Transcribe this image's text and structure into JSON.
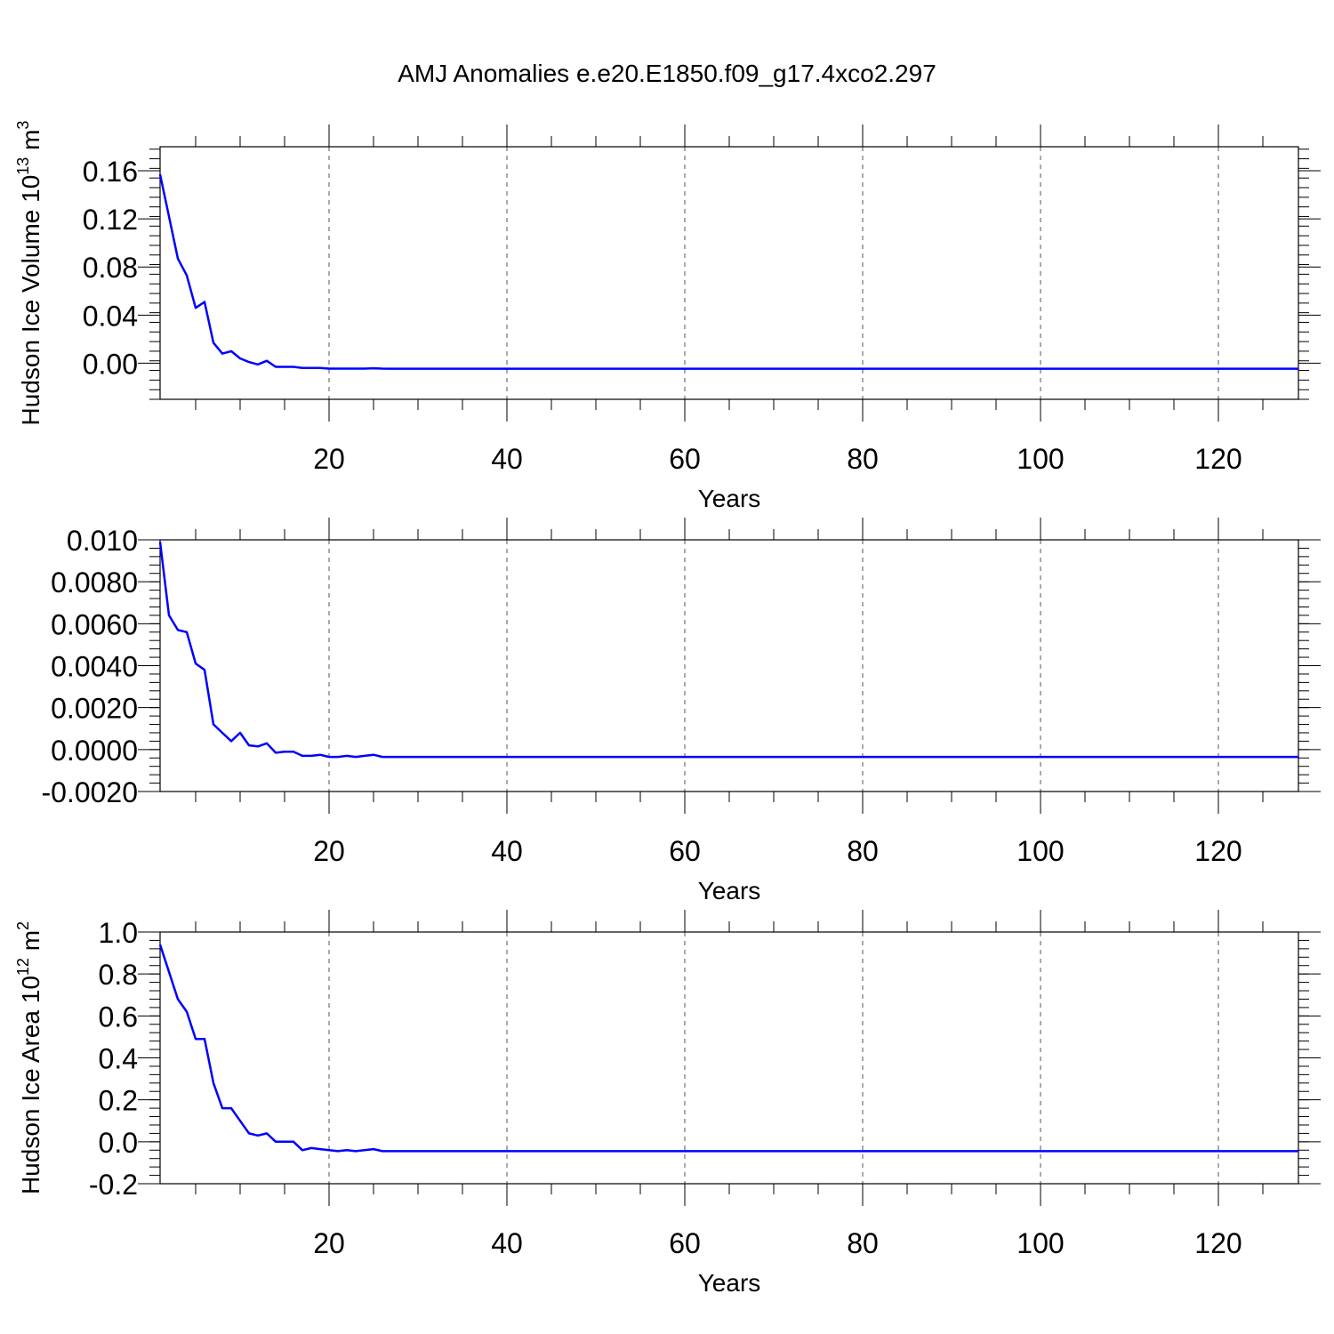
{
  "title": "AMJ Anomalies e.e20.E1850.f09_g17.4xco2.297",
  "chart_data": [
    {
      "type": "line",
      "ylabel_main": "Hudson Ice Volume 10",
      "ylabel_exp": "13",
      "ylabel_unit": " m",
      "ylabel_unit_exp": "3",
      "xlabel": "Years",
      "xlim": [
        1,
        129
      ],
      "ylim": [
        -0.03,
        0.18
      ],
      "yticks": [
        0,
        0.04,
        0.08,
        0.12,
        0.16
      ],
      "ytick_labels": [
        "0.00",
        "0.04",
        "0.08",
        "0.12",
        "0.16"
      ],
      "xticks": [
        20,
        40,
        60,
        80,
        100,
        120
      ],
      "xtick_labels": [
        "20",
        "40",
        "60",
        "80",
        "100",
        "120"
      ],
      "color": "#0000ff",
      "x": [
        1,
        2,
        3,
        4,
        5,
        6,
        7,
        8,
        9,
        10,
        11,
        12,
        13,
        14,
        15,
        16,
        17,
        18,
        19,
        20,
        21,
        22,
        23,
        24,
        25,
        26,
        27,
        30,
        35,
        40,
        50,
        60,
        70,
        80,
        90,
        100,
        110,
        120,
        129
      ],
      "y": [
        0.157,
        0.122,
        0.087,
        0.073,
        0.046,
        0.051,
        0.017,
        0.008,
        0.01,
        0.004,
        0.001,
        -0.001,
        0.002,
        -0.003,
        -0.003,
        -0.003,
        -0.004,
        -0.004,
        -0.004,
        -0.0045,
        -0.0045,
        -0.0045,
        -0.0045,
        -0.0045,
        -0.0042,
        -0.0045,
        -0.0046,
        -0.0046,
        -0.0046,
        -0.0046,
        -0.0046,
        -0.0046,
        -0.0046,
        -0.0046,
        -0.0046,
        -0.0046,
        -0.0046,
        -0.0046,
        -0.0046
      ]
    },
    {
      "type": "line",
      "xlabel": "Years",
      "xlim": [
        1,
        129
      ],
      "ylim": [
        -0.002,
        0.01
      ],
      "yticks": [
        -0.002,
        0,
        0.002,
        0.004,
        0.006,
        0.008,
        0.01
      ],
      "ytick_labels": [
        "-0.0020",
        "0.0000",
        "0.0020",
        "0.0040",
        "0.0060",
        "0.0080",
        "0.010"
      ],
      "xticks": [
        20,
        40,
        60,
        80,
        100,
        120
      ],
      "xtick_labels": [
        "20",
        "40",
        "60",
        "80",
        "100",
        "120"
      ],
      "color": "#0000ff",
      "x": [
        1,
        2,
        3,
        4,
        5,
        6,
        7,
        8,
        9,
        10,
        11,
        12,
        13,
        14,
        15,
        16,
        17,
        18,
        19,
        20,
        21,
        22,
        23,
        24,
        25,
        26,
        27,
        30,
        35,
        40,
        50,
        60,
        70,
        80,
        90,
        100,
        110,
        120,
        129
      ],
      "y": [
        0.0099,
        0.0064,
        0.0057,
        0.0056,
        0.0041,
        0.0038,
        0.0012,
        0.0008,
        0.0004,
        0.0008,
        0.0002,
        0.00015,
        0.0003,
        -0.00015,
        -0.0001,
        -0.0001,
        -0.0003,
        -0.0003,
        -0.00025,
        -0.00035,
        -0.00035,
        -0.0003,
        -0.00035,
        -0.0003,
        -0.00025,
        -0.00035,
        -0.00035,
        -0.00035,
        -0.00035,
        -0.00035,
        -0.00035,
        -0.00035,
        -0.00035,
        -0.00035,
        -0.00035,
        -0.00035,
        -0.00035,
        -0.00035,
        -0.00035
      ]
    },
    {
      "type": "line",
      "ylabel_main": "Hudson Ice Area 10",
      "ylabel_exp": "12",
      "ylabel_unit": " m",
      "ylabel_unit_exp": "2",
      "xlabel": "Years",
      "xlim": [
        1,
        129
      ],
      "ylim": [
        -0.2,
        1.0
      ],
      "yticks": [
        -0.2,
        0,
        0.2,
        0.4,
        0.6,
        0.8,
        1.0
      ],
      "ytick_labels": [
        "-0.2",
        "0.0",
        "0.2",
        "0.4",
        "0.6",
        "0.8",
        "1.0"
      ],
      "xticks": [
        20,
        40,
        60,
        80,
        100,
        120
      ],
      "xtick_labels": [
        "20",
        "40",
        "60",
        "80",
        "100",
        "120"
      ],
      "color": "#0000ff",
      "x": [
        1,
        2,
        3,
        4,
        5,
        6,
        7,
        8,
        9,
        10,
        11,
        12,
        13,
        14,
        15,
        16,
        17,
        18,
        19,
        20,
        21,
        22,
        23,
        24,
        25,
        26,
        27,
        30,
        35,
        40,
        50,
        60,
        70,
        80,
        90,
        100,
        110,
        120,
        129
      ],
      "y": [
        0.94,
        0.81,
        0.68,
        0.62,
        0.49,
        0.49,
        0.28,
        0.16,
        0.16,
        0.1,
        0.04,
        0.03,
        0.04,
        0.0,
        0.0,
        0.0,
        -0.04,
        -0.03,
        -0.035,
        -0.04,
        -0.045,
        -0.04,
        -0.045,
        -0.04,
        -0.035,
        -0.045,
        -0.045,
        -0.045,
        -0.045,
        -0.045,
        -0.045,
        -0.045,
        -0.045,
        -0.045,
        -0.045,
        -0.045,
        -0.045,
        -0.045,
        -0.045
      ]
    }
  ]
}
